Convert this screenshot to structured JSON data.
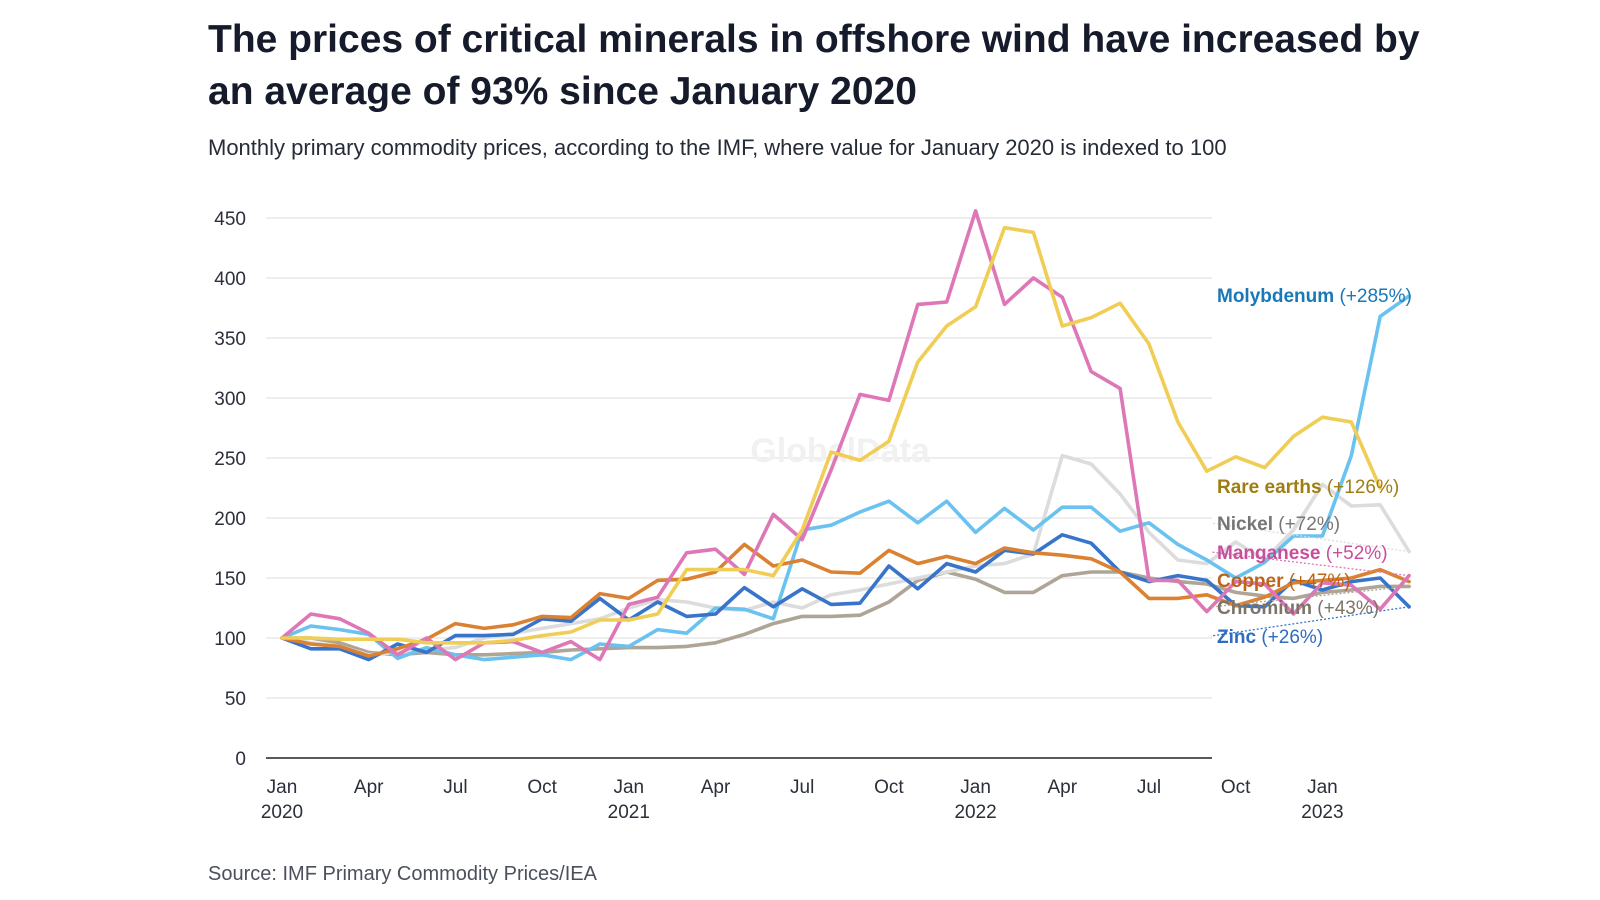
{
  "header": {
    "title": "The prices of critical minerals in offshore wind have increased by an average of 93% since January 2020",
    "subtitle": "Monthly primary commodity prices, according to the IMF, where value for January 2020 is indexed to 100"
  },
  "footer": {
    "source": "Source: IMF Primary Commodity Prices/IEA"
  },
  "chart_data": {
    "type": "line",
    "ylim": [
      0,
      450
    ],
    "yticks": [
      0,
      50,
      100,
      150,
      200,
      250,
      300,
      350,
      400,
      450
    ],
    "grid": true,
    "legend": "direct labels at right end of lines",
    "x_ticks": [
      {
        "month": 0,
        "line1": "Jan",
        "line2": "2020"
      },
      {
        "month": 3,
        "line1": "Apr",
        "line2": ""
      },
      {
        "month": 6,
        "line1": "Jul",
        "line2": ""
      },
      {
        "month": 9,
        "line1": "Oct",
        "line2": ""
      },
      {
        "month": 12,
        "line1": "Jan",
        "line2": "2021"
      },
      {
        "month": 15,
        "line1": "Apr",
        "line2": ""
      },
      {
        "month": 18,
        "line1": "Jul",
        "line2": ""
      },
      {
        "month": 21,
        "line1": "Oct",
        "line2": ""
      },
      {
        "month": 24,
        "line1": "Jan",
        "line2": "2022"
      },
      {
        "month": 27,
        "line1": "Apr",
        "line2": ""
      },
      {
        "month": 30,
        "line1": "Jul",
        "line2": ""
      },
      {
        "month": 33,
        "line1": "Oct",
        "line2": ""
      },
      {
        "month": 36,
        "line1": "Jan",
        "line2": "2023"
      }
    ],
    "series": [
      {
        "name": "Chromium",
        "change": "(+43%)",
        "color": "#aea596",
        "label_color": "#7c7466",
        "values": [
          100,
          100,
          96,
          88,
          86,
          88,
          86,
          86,
          87,
          88,
          90,
          91,
          92,
          92,
          93,
          96,
          103,
          112,
          118,
          118,
          119,
          130,
          148,
          155,
          149,
          138,
          138,
          152,
          155,
          155,
          150,
          147,
          145,
          138,
          135,
          133,
          138,
          140,
          143,
          143
        ]
      },
      {
        "name": "Nickel",
        "change": "(+72%)",
        "color": "#dcdcdc",
        "label_color": "#767676",
        "values": [
          100,
          96,
          93,
          86,
          88,
          90,
          92,
          100,
          104,
          108,
          112,
          116,
          125,
          132,
          130,
          125,
          123,
          130,
          125,
          136,
          140,
          145,
          150,
          155,
          160,
          162,
          170,
          252,
          245,
          220,
          188,
          165,
          162,
          180,
          165,
          190,
          228,
          210,
          211,
          172
        ]
      },
      {
        "name": "Molybdenum",
        "change": "(+285%)",
        "color": "#69c2ef",
        "label_color": "#1878b8",
        "values": [
          100,
          110,
          107,
          103,
          83,
          92,
          86,
          82,
          84,
          86,
          82,
          95,
          93,
          107,
          104,
          125,
          124,
          116,
          190,
          194,
          205,
          214,
          196,
          214,
          188,
          208,
          190,
          209,
          209,
          189,
          196,
          178,
          165,
          150,
          163,
          185,
          185,
          252,
          368,
          385
        ]
      },
      {
        "name": "Zinc",
        "change": "(+26%)",
        "color": "#3874c9",
        "label_color": "#2e6cc2",
        "values": [
          100,
          91,
          91,
          82,
          95,
          88,
          102,
          102,
          103,
          116,
          114,
          133,
          115,
          130,
          118,
          120,
          142,
          126,
          141,
          128,
          129,
          160,
          141,
          162,
          155,
          173,
          170,
          186,
          179,
          155,
          147,
          152,
          148,
          127,
          126,
          148,
          140,
          147,
          150,
          126
        ]
      },
      {
        "name": "Copper",
        "change": "(+47%)",
        "color": "#db8232",
        "label_color": "#bc6418",
        "values": [
          100,
          95,
          93,
          85,
          91,
          99,
          112,
          108,
          111,
          118,
          117,
          137,
          133,
          148,
          149,
          155,
          178,
          160,
          165,
          155,
          154,
          173,
          162,
          168,
          162,
          175,
          171,
          169,
          166,
          155,
          133,
          133,
          136,
          127,
          134,
          146,
          148,
          150,
          157,
          147
        ]
      },
      {
        "name": "Manganese",
        "change": "(+52%)",
        "color": "#de77b7",
        "label_color": "#c84f9b",
        "values": [
          100,
          120,
          116,
          104,
          86,
          100,
          82,
          96,
          97,
          88,
          97,
          82,
          128,
          134,
          171,
          174,
          153,
          203,
          182,
          240,
          303,
          298,
          378,
          380,
          456,
          378,
          400,
          384,
          322,
          308,
          148,
          148,
          122,
          147,
          145,
          120,
          146,
          144,
          124,
          152
        ]
      },
      {
        "name": "Rare earths",
        "change": "(+126%)",
        "color": "#f0cd55",
        "label_color": "#9e7e12",
        "values": [
          100,
          100,
          99,
          99,
          99,
          96,
          96,
          96,
          98,
          102,
          105,
          115,
          115,
          120,
          157,
          157,
          157,
          152,
          190,
          255,
          248,
          264,
          330,
          360,
          376,
          442,
          438,
          360,
          367,
          379,
          345,
          280,
          239,
          251,
          242,
          268,
          284,
          280,
          225
        ]
      }
    ],
    "watermark": "GlobalData"
  }
}
